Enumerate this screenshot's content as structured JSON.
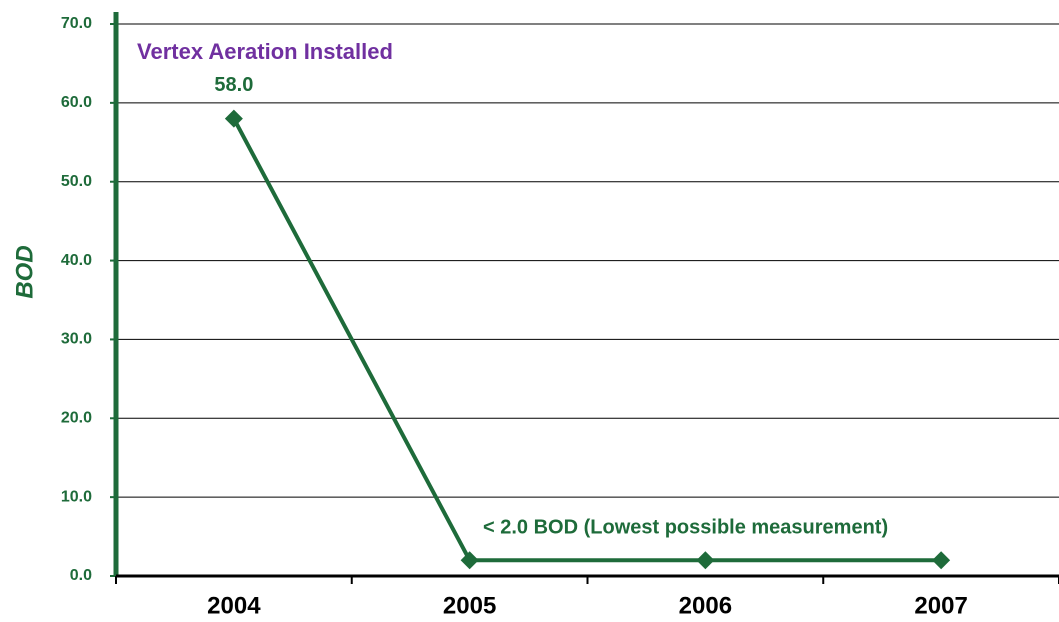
{
  "chart_data": {
    "type": "line",
    "y_label": "BOD",
    "annotations": [
      "Vertex Aeration Installed",
      "< 2.0 BOD (Lowest possible measurement)"
    ],
    "categories": [
      "2004",
      "2005",
      "2006",
      "2007"
    ],
    "values": [
      58.0,
      2.0,
      2.0,
      2.0
    ],
    "value_labels": [
      "58.0",
      null,
      null,
      null
    ],
    "color": "#1e6b3a",
    "annotation_colors": [
      "#7030a0",
      "#1e6b3a"
    ],
    "ylim": [
      0,
      70
    ],
    "yticks": [
      {
        "value": 0,
        "label": "0.0"
      },
      {
        "value": 10,
        "label": "10.0"
      },
      {
        "value": 20,
        "label": "20.0"
      },
      {
        "value": 30,
        "label": "30.0"
      },
      {
        "value": 40,
        "label": "40.0"
      },
      {
        "value": 50,
        "label": "50.0"
      },
      {
        "value": 60,
        "label": "60.0"
      },
      {
        "value": 70,
        "label": "70.0"
      }
    ],
    "grid": true
  }
}
